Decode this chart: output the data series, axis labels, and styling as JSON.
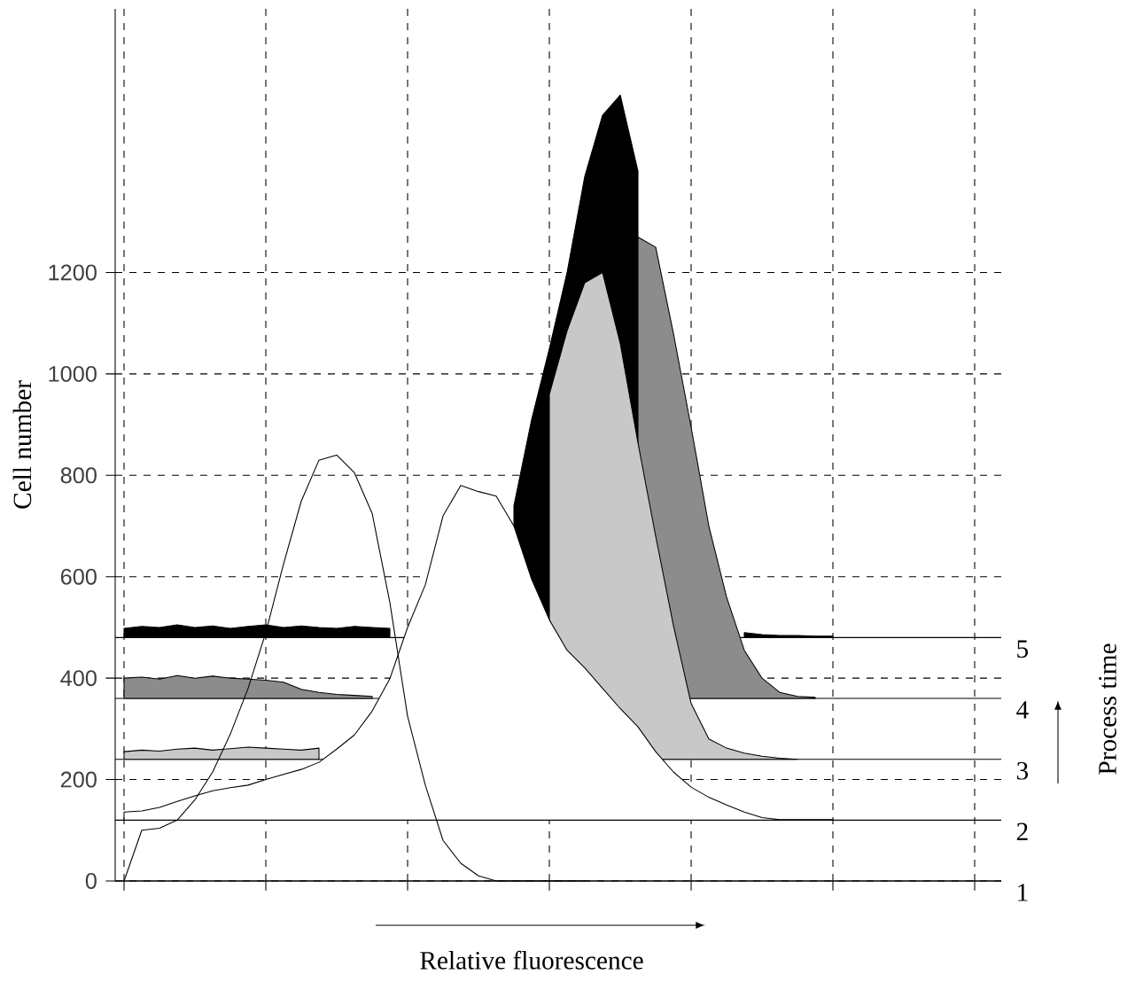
{
  "chart_data": {
    "type": "area",
    "xlabel": "Relative fluorescence",
    "ylabel": "Cell number",
    "annotations": [
      "Process time",
      "1",
      "2",
      "3",
      "4",
      "5"
    ],
    "categories": [
      null,
      null,
      null,
      null,
      null,
      null,
      null,
      null,
      null,
      null,
      null,
      null,
      null,
      null,
      null,
      null,
      null,
      null,
      null,
      null,
      null,
      null,
      null,
      null,
      null,
      null,
      null,
      null,
      null,
      null,
      null,
      null,
      null,
      null,
      null,
      null,
      null,
      null,
      null,
      null,
      null,
      null,
      null,
      null,
      null,
      null,
      null,
      null,
      null,
      null
    ],
    "series": [
      {
        "type": "line",
        "color": "#000000",
        "values": [
          0,
          100,
          104,
          120,
          160,
          215,
          290,
          380,
          490,
          625,
          749,
          830,
          840,
          805,
          725,
          549,
          325,
          189,
          80,
          35,
          10,
          0,
          0,
          0,
          0,
          0,
          0,
          null,
          null,
          null,
          null,
          null,
          null,
          null,
          null,
          null,
          null,
          null,
          null,
          null,
          null,
          null,
          null,
          null,
          null,
          null,
          null,
          null,
          null,
          null
        ]
      },
      {
        "color": "#ffffff",
        "values": [
          136,
          138,
          145,
          157,
          168,
          178,
          184,
          189,
          200,
          210,
          220,
          234,
          260,
          288,
          335,
          399,
          500,
          584,
          720,
          780,
          768,
          759,
          700,
          595,
          515,
          455,
          420,
          380,
          340,
          304,
          255,
          215,
          185,
          165,
          150,
          136,
          125,
          121,
          121,
          121,
          121,
          null,
          null,
          null,
          null,
          null,
          null,
          null,
          null,
          null
        ]
      },
      {
        "color": "#c8c8c8",
        "values": [
          255,
          258,
          256,
          260,
          262,
          258,
          261,
          264,
          262,
          260,
          258,
          262,
          null,
          null,
          null,
          null,
          null,
          null,
          null,
          null,
          null,
          null,
          null,
          null,
          960,
          1085,
          1180,
          1200,
          1060,
          864,
          680,
          504,
          350,
          280,
          262,
          252,
          246,
          242,
          240,
          null,
          null,
          null,
          null,
          null,
          null,
          null,
          null,
          null,
          null,
          null
        ]
      },
      {
        "color": "#8c8c8c",
        "values": [
          400,
          402,
          398,
          405,
          400,
          404,
          400,
          398,
          396,
          392,
          378,
          372,
          368,
          366,
          364,
          null,
          null,
          null,
          null,
          null,
          null,
          null,
          null,
          null,
          null,
          null,
          null,
          null,
          null,
          1270,
          1250,
          1080,
          895,
          700,
          560,
          455,
          400,
          372,
          364,
          362,
          null,
          null,
          null,
          null,
          null,
          null,
          null,
          null,
          null,
          null
        ]
      },
      {
        "color": "#000000",
        "values": [
          498,
          502,
          500,
          505,
          500,
          503,
          498,
          502,
          505,
          500,
          503,
          500,
          498,
          502,
          500,
          498,
          null,
          null,
          null,
          null,
          null,
          null,
          740,
          910,
          1050,
          1200,
          1390,
          1510,
          1550,
          1400,
          null,
          null,
          null,
          null,
          null,
          490,
          486,
          484,
          484,
          483,
          483,
          null,
          null,
          null,
          null,
          null,
          null,
          null,
          null,
          null
        ]
      }
    ],
    "ylim": [
      0,
      1720
    ],
    "yticks": [
      0,
      200,
      400,
      600,
      800,
      1000,
      1200
    ],
    "grid": true,
    "tick_labels": "y",
    "ref_lines": [
      {
        "axis": "y",
        "value": 0
      },
      {
        "axis": "y",
        "value": 120
      },
      {
        "axis": "y",
        "value": 240
      },
      {
        "axis": "y",
        "value": 360
      },
      {
        "axis": "y",
        "value": 480
      }
    ]
  }
}
